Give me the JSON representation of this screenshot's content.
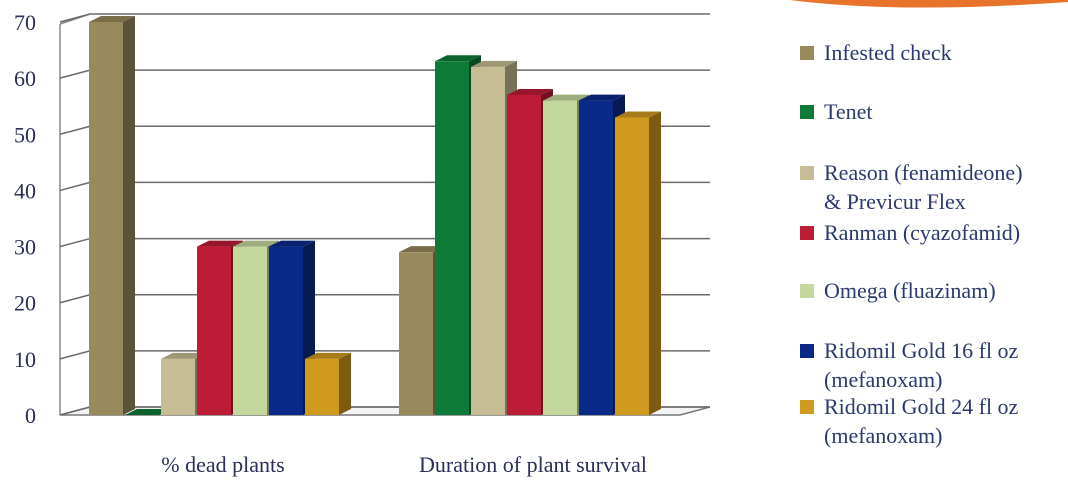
{
  "chart_data": {
    "type": "bar",
    "categories": [
      "% dead plants",
      "Duration of plant survival"
    ],
    "series": [
      {
        "name": "Infested check",
        "values": [
          70,
          29
        ],
        "color": "#988a5c"
      },
      {
        "name": "Tenet",
        "values": [
          0,
          63
        ],
        "color": "#0e7a37"
      },
      {
        "name": "Reason (fenamideone) & Previcur Flex",
        "values": [
          10,
          62
        ],
        "color": "#c6bd94"
      },
      {
        "name": "Ranman (cyazofamid)",
        "values": [
          30,
          57
        ],
        "color": "#bc1c36"
      },
      {
        "name": "Omega (fluazinam)",
        "values": [
          30,
          56
        ],
        "color": "#c4d89e"
      },
      {
        "name": "Ridomil Gold 16 fl oz (mefanoxam)",
        "values": [
          30,
          56
        ],
        "color": "#0a2a8a"
      },
      {
        "name": "Ridomil Gold 24 fl oz (mefanoxam)",
        "values": [
          10,
          53
        ],
        "color": "#d09a1e"
      }
    ],
    "legend_lines": [
      [
        "Infested check"
      ],
      [
        "Tenet"
      ],
      [
        "Reason (fenamideone)",
        "& Previcur Flex"
      ],
      [
        "Ranman (cyazofamid)"
      ],
      [
        "Omega (fluazinam)"
      ],
      [
        "Ridomil Gold 16 fl oz",
        "(mefanoxam)"
      ],
      [
        "Ridomil Gold 24 fl oz",
        "(mefanoxam)"
      ]
    ],
    "ylim": [
      0,
      70
    ],
    "yticks": [
      0,
      10,
      20,
      30,
      40,
      50,
      60,
      70
    ],
    "grid": true,
    "legend_position": "right",
    "title": "",
    "xlabel": "",
    "ylabel": ""
  },
  "colors": {
    "accent_swoosh": "#e8732a",
    "gridline": "#6a6a6a",
    "text": "#2a2f5a"
  }
}
